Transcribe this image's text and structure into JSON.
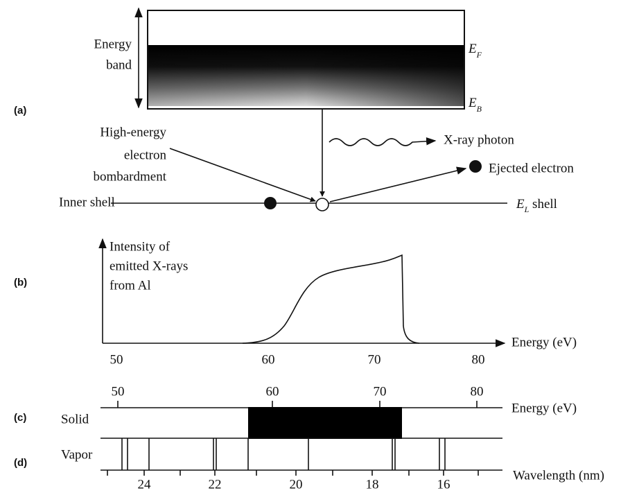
{
  "panel_a": {
    "label": "(a)",
    "energy_band": [
      "Energy",
      "band"
    ],
    "fermi": {
      "letter": "E",
      "subscript": "F"
    },
    "bottom": {
      "letter": "E",
      "subscript": "B"
    },
    "photon": "X-ray photon",
    "bombardment": [
      "High-energy",
      "electron",
      "bombardment"
    ],
    "ejected": "Ejected electron",
    "inner_shell": "Inner shell",
    "shell": {
      "letter": "E",
      "subscript": "L",
      "suffix": " shell"
    }
  },
  "panel_b": {
    "label": "(b)",
    "y_label": [
      "Intensity of",
      "emitted X-rays",
      "from Al"
    ],
    "x_label": "Energy (eV)",
    "ticks": [
      "50",
      "60",
      "70",
      "80"
    ]
  },
  "panel_c": {
    "label": "(c)",
    "row": "Solid",
    "x_label": "Energy (eV)",
    "ticks": [
      "50",
      "60",
      "70",
      "80"
    ]
  },
  "panel_d": {
    "label": "(d)",
    "row": "Vapor",
    "x_label": "Wavelength (nm)",
    "ticks": [
      "24",
      "22",
      "20",
      "18",
      "16"
    ]
  }
}
